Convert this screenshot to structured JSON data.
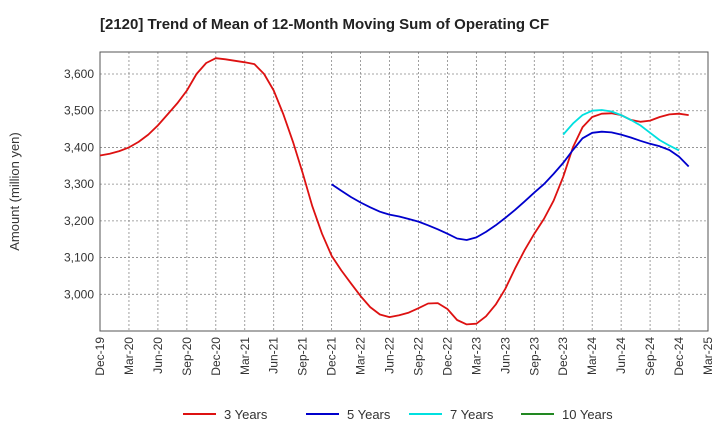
{
  "chart_data": {
    "type": "line",
    "title": "[2120]  Trend of Mean of 12-Month Moving Sum of Operating CF",
    "xlabel": "",
    "ylabel": "Amount (million yen)",
    "ylim": [
      2900,
      3660
    ],
    "yticks": [
      3000,
      3100,
      3200,
      3300,
      3400,
      3500,
      3600
    ],
    "ytick_labels": [
      "3,000",
      "3,100",
      "3,200",
      "3,300",
      "3,400",
      "3,500",
      "3,600"
    ],
    "xtick_labels": [
      "Dec-19",
      "Mar-20",
      "Jun-20",
      "Sep-20",
      "Dec-20",
      "Mar-21",
      "Jun-21",
      "Sep-21",
      "Dec-21",
      "Mar-22",
      "Jun-22",
      "Sep-22",
      "Dec-22",
      "Mar-23",
      "Jun-23",
      "Sep-23",
      "Dec-23",
      "Mar-24",
      "Jun-24",
      "Sep-24",
      "Dec-24",
      "Mar-25"
    ],
    "months_total": 63,
    "grid": true,
    "legend_position": "bottom",
    "series": [
      {
        "name": "3 Years",
        "color": "#dd1111",
        "start_month": 0,
        "values": [
          3378,
          3383,
          3390,
          3400,
          3415,
          3435,
          3460,
          3490,
          3520,
          3555,
          3600,
          3630,
          3643,
          3640,
          3636,
          3632,
          3627,
          3600,
          3555,
          3490,
          3415,
          3330,
          3240,
          3165,
          3105,
          3065,
          3030,
          2995,
          2965,
          2945,
          2938,
          2943,
          2950,
          2962,
          2975,
          2976,
          2960,
          2930,
          2918,
          2920,
          2940,
          2972,
          3015,
          3070,
          3120,
          3165,
          3205,
          3255,
          3320,
          3400,
          3455,
          3483,
          3492,
          3493,
          3488,
          3475,
          3470,
          3473,
          3483,
          3490,
          3492,
          3488
        ]
      },
      {
        "name": "5 Years",
        "color": "#0000cc",
        "start_month": 24,
        "values": [
          3300,
          3282,
          3265,
          3250,
          3237,
          3225,
          3217,
          3212,
          3205,
          3198,
          3188,
          3177,
          3165,
          3152,
          3148,
          3155,
          3170,
          3188,
          3208,
          3230,
          3253,
          3277,
          3300,
          3328,
          3358,
          3393,
          3425,
          3440,
          3443,
          3441,
          3435,
          3427,
          3418,
          3410,
          3403,
          3393,
          3375,
          3348
        ]
      },
      {
        "name": "7 Years",
        "color": "#00e0e0",
        "start_month": 48,
        "values": [
          3435,
          3465,
          3488,
          3500,
          3502,
          3498,
          3488,
          3475,
          3460,
          3440,
          3420,
          3405,
          3392
        ]
      },
      {
        "name": "10 Years",
        "color": "#228822",
        "start_month": 0,
        "values": []
      }
    ]
  }
}
